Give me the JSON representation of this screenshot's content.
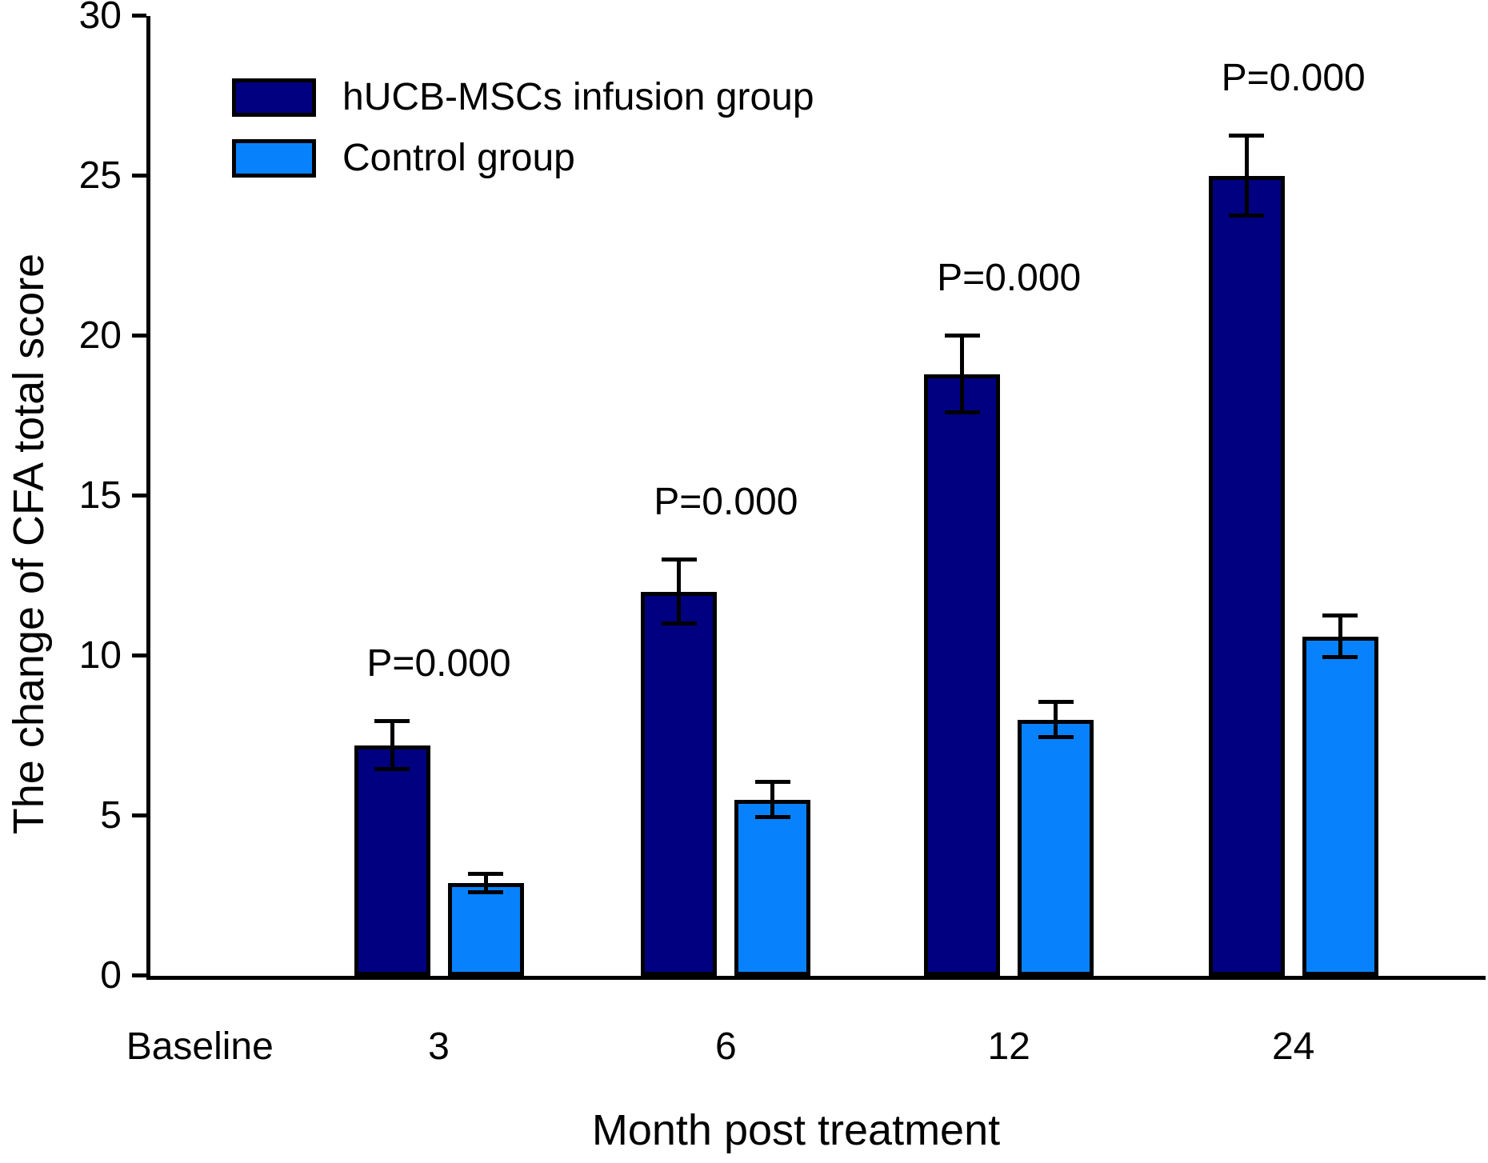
{
  "chart_data": {
    "type": "bar",
    "title": "",
    "xlabel": "Month post treatment",
    "ylabel": "The change of CFA total score",
    "ylim": [
      0,
      30
    ],
    "yticks": [
      0,
      5,
      10,
      15,
      20,
      25,
      30
    ],
    "grid": false,
    "legend_position": "top-left",
    "categories": [
      "Baseline",
      "3",
      "6",
      "12",
      "24"
    ],
    "category_positions_pct": [
      3.7,
      21.6,
      43.1,
      64.3,
      85.6
    ],
    "series": [
      {
        "name": "hUCB-MSCs infusion group",
        "color": "#000080",
        "values": [
          null,
          7.2,
          12.0,
          18.8,
          25.0
        ],
        "errors": [
          null,
          0.75,
          1.0,
          1.2,
          1.25
        ]
      },
      {
        "name": "Control group",
        "color": "#0882FC",
        "values": [
          null,
          2.9,
          5.5,
          8.0,
          10.6
        ],
        "errors": [
          null,
          0.3,
          0.55,
          0.55,
          0.65
        ]
      }
    ],
    "annotations": [
      {
        "label": "P=0.000",
        "category_index": 1
      },
      {
        "label": "P=0.000",
        "category_index": 2
      },
      {
        "label": "P=0.000",
        "category_index": 3
      },
      {
        "label": "P=0.000",
        "category_index": 4
      }
    ]
  }
}
